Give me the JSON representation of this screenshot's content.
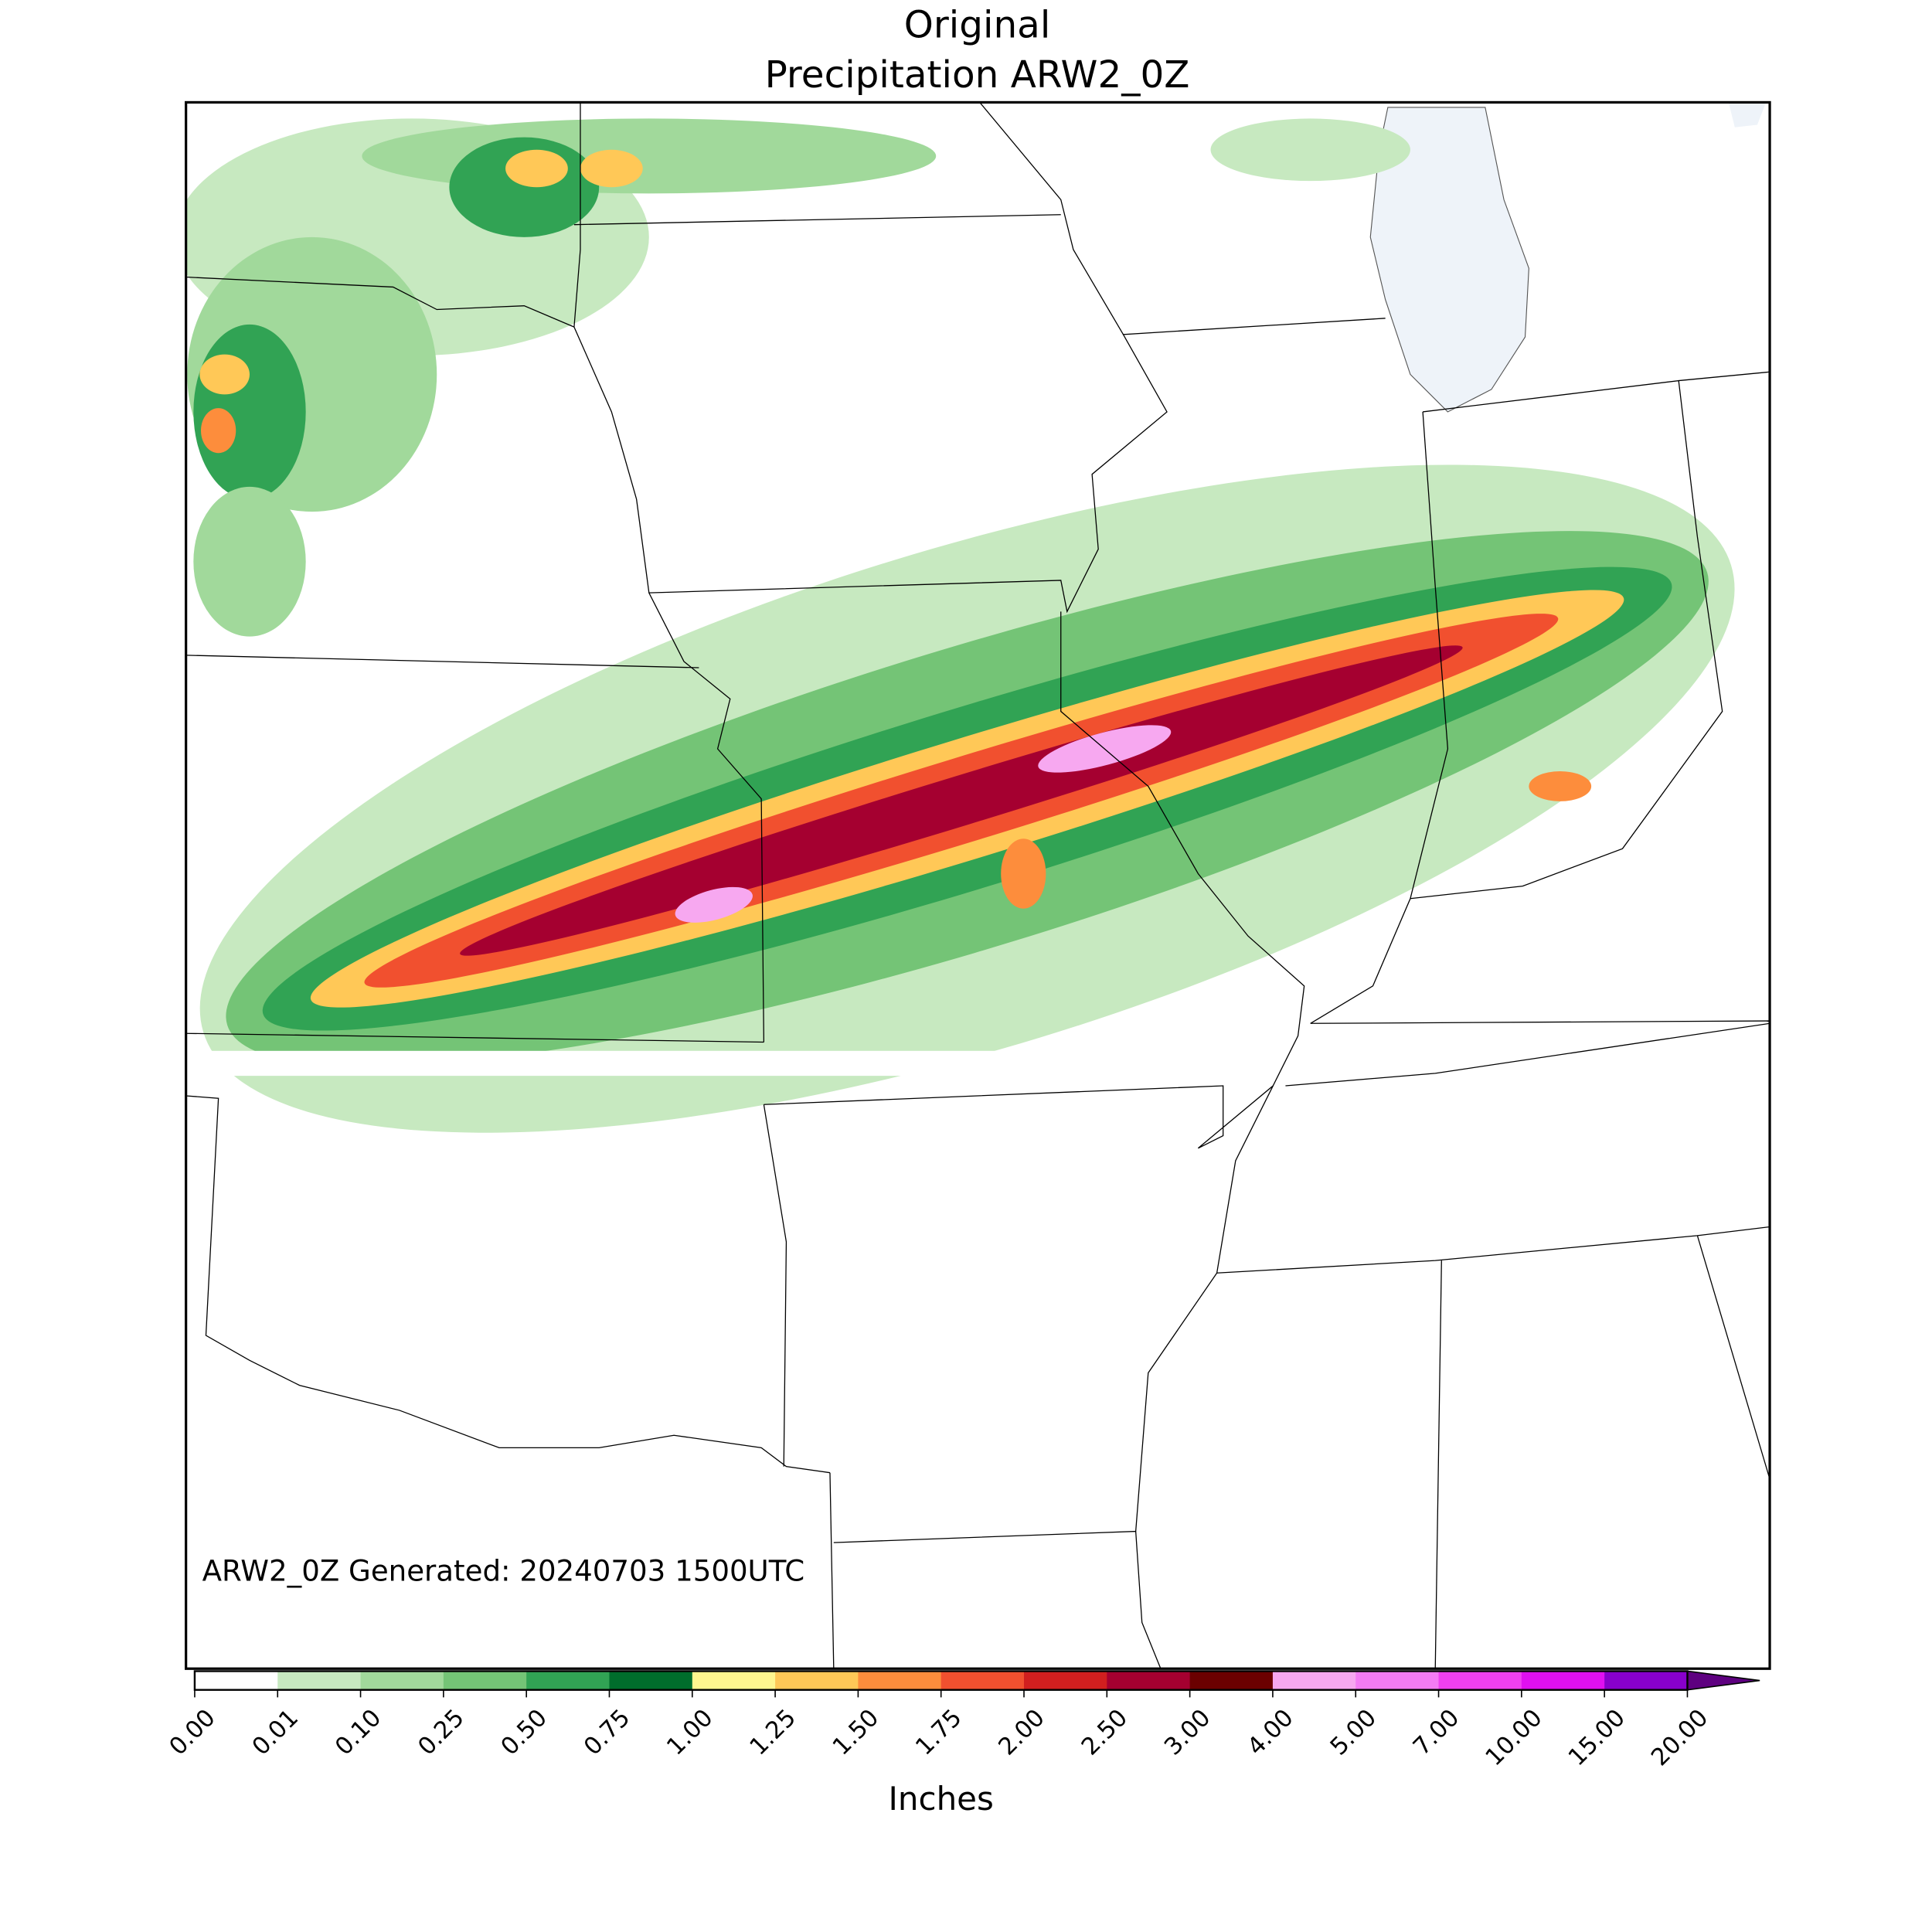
{
  "map": {
    "title": [
      "Original",
      "Precipitation ARW2_0Z"
    ],
    "annotation": "ARW2_0Z Generated: 20240703 1500UTC",
    "colorbar": {
      "label": "Inches",
      "ticks": [
        {
          "value": 0,
          "label": "0.00"
        },
        {
          "value": 0.01,
          "label": "0.01"
        },
        {
          "value": 0.1,
          "label": "0.10"
        },
        {
          "value": 0.25,
          "label": "0.25"
        },
        {
          "value": 0.5,
          "label": "0.50"
        },
        {
          "value": 0.75,
          "label": "0.75"
        },
        {
          "value": 1,
          "label": "1.00"
        },
        {
          "value": 1.25,
          "label": "1.25"
        },
        {
          "value": 1.5,
          "label": "1.50"
        },
        {
          "value": 1.75,
          "label": "1.75"
        },
        {
          "value": 2,
          "label": "2.00"
        },
        {
          "value": 2.5,
          "label": "2.50"
        },
        {
          "value": 3,
          "label": "3.00"
        },
        {
          "value": 4,
          "label": "4.00"
        },
        {
          "value": 5,
          "label": "5.00"
        },
        {
          "value": 7,
          "label": "7.00"
        },
        {
          "value": 10,
          "label": "10.00"
        },
        {
          "value": 15,
          "label": "15.00"
        },
        {
          "value": 20,
          "label": "20.00"
        }
      ],
      "colors": [
        "#ffffff",
        "#c7e9c0",
        "#a1d99b",
        "#74c476",
        "#31a354",
        "#006d2c",
        "#fff68f",
        "#ffc857",
        "#fd8d3c",
        "#f1502f",
        "#d11f1f",
        "#a50030",
        "#6b0000",
        "#f7a8f0",
        "#f47cf4",
        "#f040f0",
        "#e010f0",
        "#8800cc"
      ],
      "extend_color": "#5e0080"
    }
  }
}
